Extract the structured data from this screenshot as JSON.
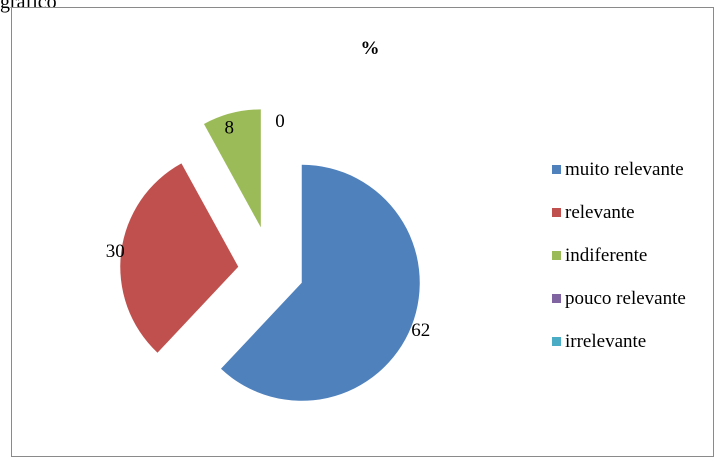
{
  "caption": "gráfico",
  "chart_data": {
    "type": "pie",
    "title": "%",
    "categories": [
      "muito relevante",
      "relevante",
      "indiferente",
      "pouco relevante",
      "irrelevante"
    ],
    "values": [
      62,
      30,
      8,
      0,
      0
    ],
    "colors": [
      "#4f81bd",
      "#c0504d",
      "#9bbb59",
      "#8064a2",
      "#4bacc6"
    ],
    "data_labels": [
      "62",
      "30",
      "8",
      "0",
      ""
    ],
    "legend_position": "right",
    "exploded": true
  }
}
